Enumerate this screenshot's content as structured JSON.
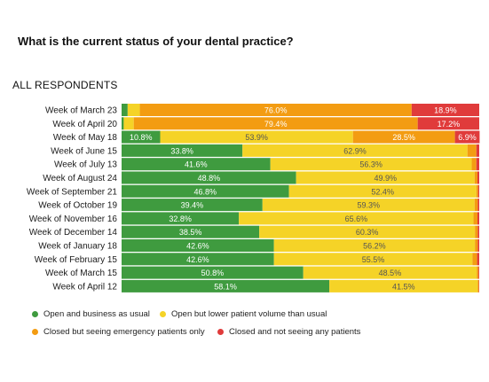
{
  "question": "What is the current status of your dental practice?",
  "subtitle": "ALL RESPONDENTS",
  "colors": {
    "open_usual": "#3f9b3f",
    "open_lower": "#f5d327",
    "closed_emergency": "#f39c12",
    "closed_none": "#e03b3b"
  },
  "legend": [
    {
      "label": "Open and business as usual",
      "color": "#3f9b3f"
    },
    {
      "label": "Open but lower patient volume than usual",
      "color": "#f5d327"
    },
    {
      "label": "Closed but seeing emergency patients only",
      "color": "#f39c12"
    },
    {
      "label": "Closed and not seeing any patients",
      "color": "#e03b3b"
    }
  ],
  "chart_data": {
    "type": "bar",
    "orientation": "horizontal",
    "stacked": "100%",
    "categories": [
      "Week of March 23",
      "Week of April 20",
      "Week of May 18",
      "Week of June 15",
      "Week of July 13",
      "Week of August 24",
      "Week of September 21",
      "Week of October 19",
      "Week of November 16",
      "Week of December 14",
      "Week of January 18",
      "Week of February 15",
      "Week of March 15",
      "Week of April 12"
    ],
    "series": [
      {
        "name": "Open and business as usual",
        "color": "#3f9b3f",
        "values": [
          1.7,
          0.6,
          10.8,
          33.8,
          41.6,
          48.8,
          46.8,
          39.4,
          32.8,
          38.5,
          42.6,
          42.6,
          50.8,
          58.1
        ],
        "labels": [
          "",
          "",
          "10.8%",
          "33.8%",
          "41.6%",
          "48.8%",
          "46.8%",
          "39.4%",
          "32.8%",
          "38.5%",
          "42.6%",
          "42.6%",
          "50.8%",
          "58.1%"
        ]
      },
      {
        "name": "Open but lower patient volume than usual",
        "color": "#f5d327",
        "values": [
          3.4,
          2.8,
          53.9,
          62.9,
          56.3,
          49.9,
          52.4,
          59.3,
          65.6,
          60.3,
          56.2,
          55.5,
          48.5,
          41.5
        ],
        "labels": [
          "",
          "",
          "53.9%",
          "62.9%",
          "56.3%",
          "49.9%",
          "52.4%",
          "59.3%",
          "65.6%",
          "60.3%",
          "56.2%",
          "55.5%",
          "48.5%",
          "41.5%"
        ]
      },
      {
        "name": "Closed but seeing emergency patients only",
        "color": "#f39c12",
        "values": [
          76.0,
          79.4,
          28.5,
          2.5,
          1.3,
          0.8,
          0.5,
          0.9,
          1.1,
          0.8,
          0.8,
          1.3,
          0.5,
          0.3
        ],
        "labels": [
          "76.0%",
          "79.4%",
          "28.5%",
          "",
          "",
          "",
          "",
          "",
          "",
          "",
          "",
          "",
          "",
          ""
        ]
      },
      {
        "name": "Closed and not seeing any patients",
        "color": "#e03b3b",
        "values": [
          18.9,
          17.2,
          6.9,
          0.8,
          0.8,
          0.5,
          0.3,
          0.4,
          0.5,
          0.4,
          0.4,
          0.6,
          0.2,
          0.1
        ],
        "labels": [
          "18.9%",
          "17.2%",
          "6.9%",
          "",
          "",
          "",
          "",
          "",
          "",
          "",
          "",
          "",
          "",
          ""
        ]
      }
    ],
    "xlim": [
      0,
      100
    ],
    "grid": false,
    "legend_position": "bottom"
  }
}
